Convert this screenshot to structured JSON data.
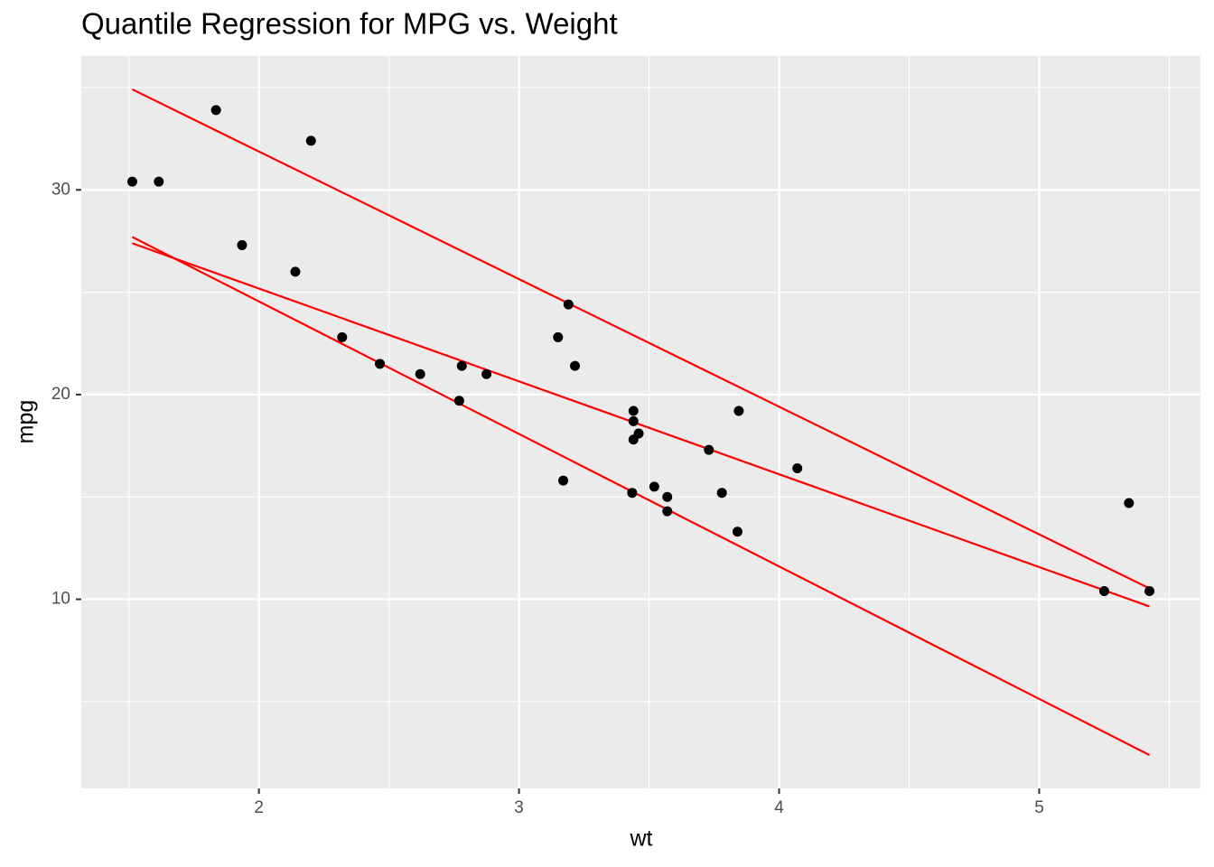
{
  "chart_data": {
    "type": "scatter",
    "title": "Quantile Regression for MPG vs. Weight",
    "x_label": "wt",
    "y_label": "mpg",
    "x": [
      2.62,
      2.875,
      2.32,
      3.215,
      3.44,
      3.46,
      3.57,
      3.19,
      3.15,
      3.44,
      3.44,
      4.07,
      3.73,
      3.78,
      5.25,
      5.424,
      5.345,
      2.2,
      1.615,
      1.835,
      2.465,
      3.52,
      3.435,
      3.84,
      3.845,
      1.935,
      2.14,
      1.513,
      3.17,
      2.77,
      3.57,
      2.78
    ],
    "values": [
      21.0,
      21.0,
      22.8,
      21.4,
      18.7,
      18.1,
      14.3,
      24.4,
      22.8,
      19.2,
      17.8,
      16.4,
      17.3,
      15.2,
      10.4,
      10.4,
      14.7,
      32.4,
      30.4,
      33.9,
      21.5,
      15.5,
      15.2,
      13.3,
      19.2,
      27.3,
      26.0,
      30.4,
      15.8,
      19.7,
      15.0,
      21.4
    ],
    "color": "#000000",
    "lines": [
      {
        "x": [
          1.513,
          5.424
        ],
        "values": [
          34.91,
          10.53
        ],
        "color": "#ff0000"
      },
      {
        "x": [
          1.513,
          5.424
        ],
        "values": [
          27.39,
          9.65
        ],
        "color": "#ff0000"
      },
      {
        "x": [
          1.513,
          5.424
        ],
        "values": [
          27.7,
          2.39
        ],
        "color": "#ff0000"
      }
    ],
    "xlim": [
      1.317,
      5.62
    ],
    "xticks": [
      2,
      3,
      4,
      5
    ],
    "ylim": [
      0.76,
      36.54
    ],
    "yticks": [
      10,
      20,
      30
    ],
    "grid": true
  }
}
